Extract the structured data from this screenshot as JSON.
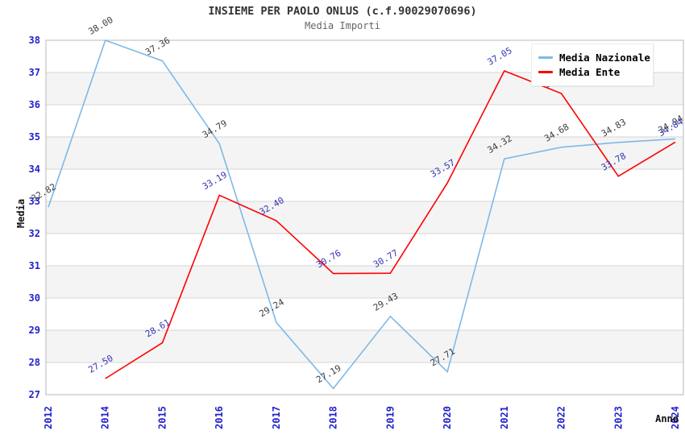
{
  "header": {
    "title": "INSIEME PER PAOLO ONLUS (c.f.90029070696)",
    "subtitle": "Media Importi"
  },
  "legend": {
    "items": [
      {
        "label": "Media Nazionale",
        "color": "#7db9e8"
      },
      {
        "label": "Media Ente",
        "color": "#ff0000"
      }
    ]
  },
  "chart_data": {
    "type": "line",
    "categories": [
      "2012",
      "2014",
      "2015",
      "2016",
      "2017",
      "2018",
      "2019",
      "2020",
      "2021",
      "2022",
      "2023",
      "2024"
    ],
    "series": [
      {
        "name": "Media Nazionale",
        "color": "#7db9e8",
        "label_color": "#3d3d3d",
        "values": [
          32.82,
          38.0,
          37.36,
          34.79,
          29.24,
          27.19,
          29.43,
          27.71,
          34.32,
          34.68,
          34.83,
          34.94
        ]
      },
      {
        "name": "Media Ente",
        "color": "#ff0000",
        "label_color": "#3535b5",
        "values": [
          null,
          27.5,
          28.61,
          33.19,
          32.4,
          30.76,
          30.77,
          33.57,
          37.05,
          36.35,
          33.78,
          34.84
        ]
      }
    ],
    "xlabel": "Anno",
    "ylabel": "Media",
    "ylim": [
      27,
      38
    ],
    "ytick_step": 1,
    "value_label_decimals": 2,
    "tick_color": "#2222cc",
    "grid_color": "#d6d6d6",
    "band_color": "#f4f4f4",
    "axis_color": "#b8b8b8",
    "grid": true,
    "alternating_bands": true,
    "legend_position": "top-right"
  }
}
